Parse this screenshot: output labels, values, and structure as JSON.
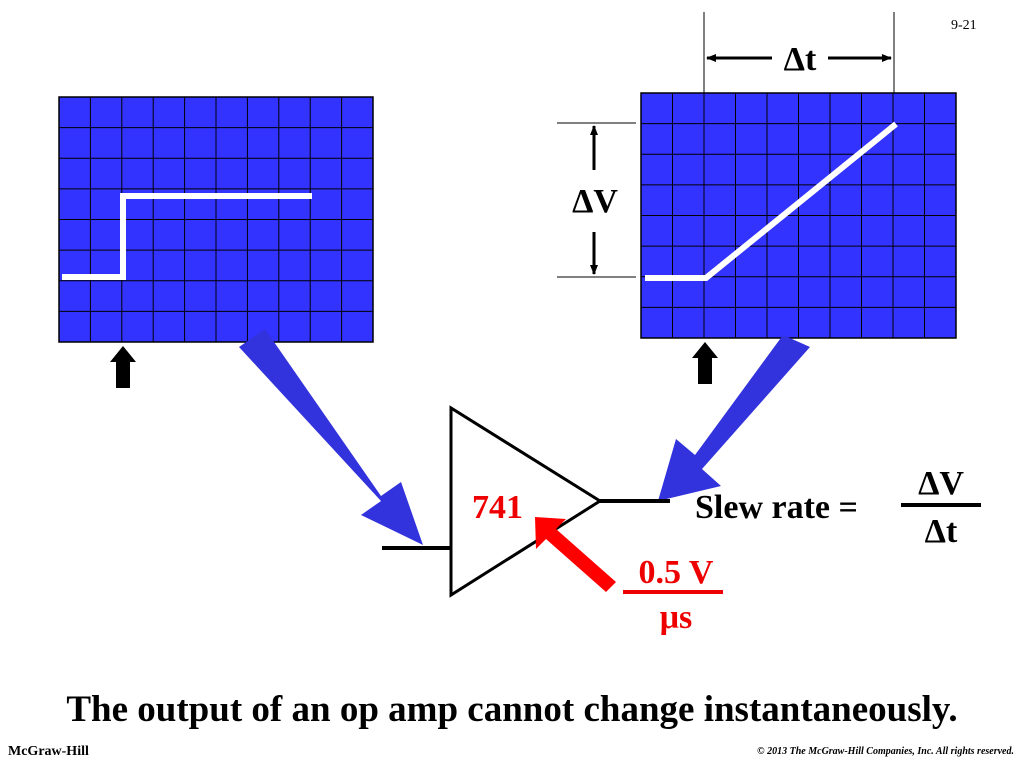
{
  "slide": {
    "page_number": "9-21",
    "caption": "The output of an op amp cannot change instantaneously.",
    "publisher": "McGraw-Hill",
    "copyright": "© 2013 The McGraw-Hill Companies, Inc. All rights reserved."
  },
  "diagram": {
    "delta_t_label": "Δt",
    "delta_v_label": "ΔV",
    "opamp_label": "741",
    "slew_rate_label": "Slew rate =",
    "fraction_numerator": "ΔV",
    "fraction_denominator": "Δt",
    "slew_value_numerator": "0.5 V",
    "slew_value_denominator": "μs"
  },
  "colors": {
    "scope_fill": "#3333ff",
    "grid_line": "#000000",
    "trace": "#ffffff",
    "flow_arrow": "#3333dd",
    "highlight": "#ff0000",
    "text": "#000000"
  }
}
